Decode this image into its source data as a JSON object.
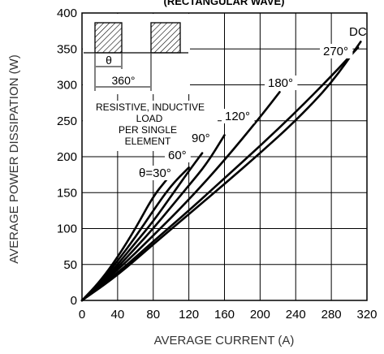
{
  "chart_data": {
    "type": "line",
    "title": "(RECTANGULAR WAVE)",
    "xlabel": "AVERAGE CURRENT (A)",
    "ylabel": "AVERAGE POWER DISSIPATION (W)",
    "xlim": [
      0,
      320
    ],
    "ylim": [
      0,
      400
    ],
    "x_ticks": [
      "0",
      "40",
      "80",
      "120",
      "160",
      "200",
      "240",
      "280",
      "320"
    ],
    "y_ticks": [
      "0",
      "50",
      "100",
      "150",
      "200",
      "250",
      "300",
      "350",
      "400"
    ],
    "grid": true,
    "series": [
      {
        "name": "θ=30°",
        "x": [
          0,
          20,
          40,
          60,
          80,
          95
        ],
        "y": [
          0,
          26,
          60,
          100,
          145,
          168
        ]
      },
      {
        "name": "60°",
        "x": [
          0,
          20,
          40,
          60,
          80,
          100,
          120
        ],
        "y": [
          0,
          24,
          55,
          88,
          125,
          160,
          185
        ]
      },
      {
        "name": "90°",
        "x": [
          0,
          20,
          40,
          60,
          80,
          100,
          120,
          135
        ],
        "y": [
          0,
          22,
          50,
          80,
          110,
          145,
          180,
          205
        ]
      },
      {
        "name": "120°",
        "x": [
          0,
          20,
          40,
          60,
          80,
          100,
          120,
          140,
          160
        ],
        "y": [
          0,
          21,
          46,
          73,
          100,
          130,
          160,
          190,
          230
        ]
      },
      {
        "name": "180°",
        "x": [
          0,
          40,
          80,
          120,
          160,
          200,
          222
        ],
        "y": [
          0,
          42,
          90,
          140,
          195,
          255,
          290
        ]
      },
      {
        "name": "270°",
        "x": [
          0,
          40,
          80,
          120,
          160,
          200,
          240,
          280,
          310
        ],
        "y": [
          0,
          38,
          82,
          125,
          170,
          215,
          262,
          312,
          352
        ]
      },
      {
        "name": "DC",
        "x": [
          0,
          40,
          80,
          120,
          160,
          200,
          240,
          280,
          313
        ],
        "y": [
          0,
          35,
          78,
          120,
          162,
          205,
          250,
          302,
          360
        ]
      }
    ],
    "annotations": [
      "RESISTIVE, INDUCTIVE",
      "LOAD",
      "PER SINGLE",
      "ELEMENT"
    ],
    "inset": {
      "theta_label": "θ",
      "period_label": "360°"
    }
  }
}
